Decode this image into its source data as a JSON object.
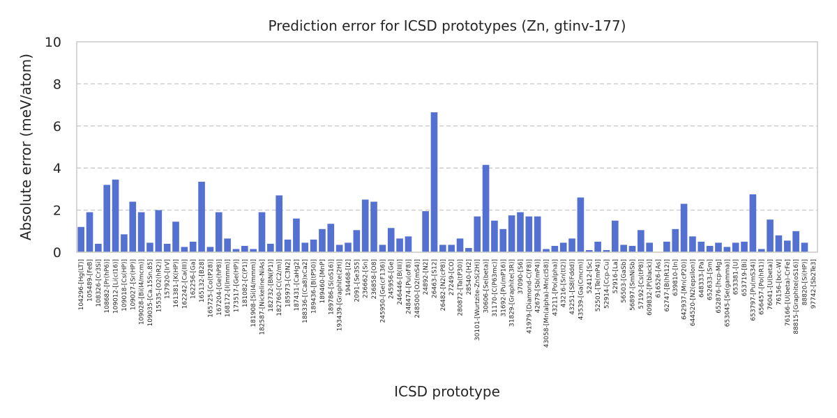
{
  "chart_data": {
    "type": "bar",
    "title": "Prediction error for ICSD prototypes (Zn, gtinv-177)",
    "xlabel": "ICSD prototype",
    "ylabel": "Absolute error (meV/atom)",
    "ylim": [
      0,
      10
    ],
    "yticks": [
      0,
      2,
      4,
      6,
      8,
      10
    ],
    "grid": true,
    "bar_color": "#5471d2",
    "categories": [
      "104296-[Hg(LT)]",
      "105489-[FeB]",
      "108326-[Cr3Si]",
      "108682-[Pr(hP6)]",
      "109012-[Li(cI16)]",
      "109018-[Cs(HP)]",
      "109027-[Sr(HP)]",
      "109028-[Bi(I4/mcm)]",
      "109035-[Ca.15Sn.85]",
      "15535-[O2(hR2)]",
      "157920-[IrV]",
      "161381-[K(HP)]",
      "162242-[Ca(III)]",
      "162256-[Ga]",
      "165132-[B28]",
      "165725-[Co(tP28)]",
      "167204-[Ge(hP8)]",
      "168172-[I(Immm)]",
      "173517-[Ge(HP)]",
      "181082-[C(P1)]",
      "181908-[Si(I4/mmm)]",
      "182587-[Nickeline-NiAs]",
      "182732-[BN(P1)]",
      "182760-[C(C2/m)]",
      "185973-[C3N2]",
      "187431-[CaHg2]",
      "188336-[(Ca8)xCa2]",
      "189436-[B(tP50)]",
      "189460-[MnP]",
      "189786-[S(oS16)]",
      "193439-[Graphite(2H)]",
      "194468-[I2]",
      "2091-[Se3S5]",
      "236662-[Sn]",
      "236858-[O8]",
      "245950-[Ge(cF136)]",
      "245956-[Ge]",
      "246446-[B(III)]",
      "248474-[Pu(oF8)]",
      "248500-[O2(mS4)]",
      "24892-[N2]",
      "26463-[S12]",
      "26482-[N2(cP8)]",
      "27249-[CO]",
      "280872-[Ta(tP30)]",
      "28540-[H2]",
      "30101-[Wurtzite-ZnS(2H)]",
      "30606-[Se(beta)]",
      "31170-[C(P63mc)]",
      "31692-[Pu(mP16)]",
      "31829-[Graphite(3R)]",
      "37090-[S6]",
      "41979-[Diamond-C(F8)]",
      "42679-[Sb(mP4)]",
      "43058-[Mn(alpha)-Mn(cI58)]",
      "43211-[Po(alpha)]",
      "43216-[Sn(tI2)]",
      "43251-[S8(Fddd)]",
      "43539-[Ga(Cmcm)]",
      "52412-[Sc]",
      "52501-[Te(mP4)]",
      "52914-[Ccp-Cu]",
      "52916-[La]",
      "56503-[GaSb]",
      "56897-[SmNiSb]",
      "57192-[Cs(tP8)]",
      "609832-[P(black)]",
      "616526-[As]",
      "62747-[B(hR12)]",
      "639810-[In]",
      "642937-[Mn(cP20)]",
      "644520-[N2(epsilon)]",
      "648333-[Pa]",
      "652633-[Sm]",
      "652876-[hcp-Mg]",
      "653045-[Se(gamma)]",
      "653381-[U]",
      "653719-[Bi]",
      "653797-[Pu(mS34)]",
      "656457-[Po(hR1)]",
      "76041-[U(beta)]",
      "76156-[bcc-W]",
      "76166-[U(beta)-CrFe]",
      "88815-[Graphite(oS16)]",
      "88820-[Si(HP)]",
      "97742-[Sb2Te3]"
    ],
    "values": [
      1.2,
      1.9,
      0.4,
      3.2,
      3.45,
      0.85,
      2.4,
      1.9,
      0.45,
      2.0,
      0.4,
      1.45,
      0.25,
      0.5,
      3.35,
      0.25,
      1.9,
      0.65,
      0.15,
      0.3,
      0.15,
      1.9,
      0.4,
      2.7,
      0.6,
      1.6,
      0.45,
      0.6,
      1.1,
      1.35,
      0.35,
      0.45,
      1.05,
      2.5,
      2.4,
      0.35,
      1.15,
      0.65,
      0.75,
      0.0,
      1.95,
      6.65,
      0.35,
      0.35,
      0.65,
      0.2,
      1.7,
      4.15,
      1.5,
      1.1,
      1.75,
      1.9,
      1.7,
      1.7,
      0.15,
      0.3,
      0.45,
      0.65,
      2.6,
      0.1,
      0.5,
      0.1,
      1.5,
      0.35,
      0.3,
      1.05,
      0.45,
      0.0,
      0.5,
      1.1,
      2.3,
      0.75,
      0.5,
      0.3,
      0.45,
      0.25,
      0.45,
      0.5,
      2.75,
      0.15,
      1.55,
      0.8,
      0.55,
      1.0,
      0.45,
      0.0
    ]
  }
}
